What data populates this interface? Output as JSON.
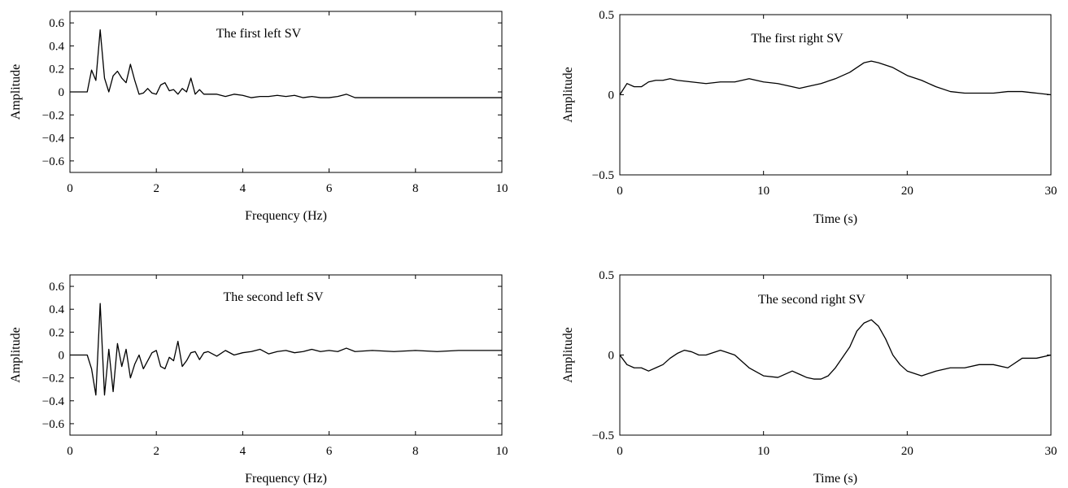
{
  "chart_data": [
    {
      "type": "line",
      "title": "The first left SV",
      "xlabel": "Frequency (Hz)",
      "ylabel": "Amplitude",
      "xlim": [
        0,
        10
      ],
      "ylim": [
        -0.7,
        0.7
      ],
      "xticks": [
        0,
        2,
        4,
        6,
        8,
        10
      ],
      "yticks": [
        0.6,
        0.4,
        0.2,
        0,
        -0.2,
        -0.4,
        -0.6
      ],
      "ytick_labels": [
        "0.6",
        "0.4",
        "0.2",
        "0",
        "−0.2",
        "−0.4",
        "−0.6"
      ],
      "grid": false,
      "x": [
        0,
        0.4,
        0.5,
        0.6,
        0.7,
        0.8,
        0.9,
        1.0,
        1.1,
        1.2,
        1.3,
        1.4,
        1.5,
        1.6,
        1.7,
        1.8,
        1.9,
        2.0,
        2.1,
        2.2,
        2.3,
        2.4,
        2.5,
        2.6,
        2.7,
        2.8,
        2.9,
        3.0,
        3.1,
        3.2,
        3.4,
        3.6,
        3.8,
        4.0,
        4.2,
        4.4,
        4.6,
        4.8,
        5.0,
        5.2,
        5.4,
        5.6,
        5.8,
        6.0,
        6.2,
        6.4,
        6.6,
        7.0,
        7.5,
        8.0,
        8.5,
        9.0,
        9.5,
        10.0
      ],
      "y": [
        0,
        0,
        0.19,
        0.1,
        0.54,
        0.12,
        0.0,
        0.14,
        0.18,
        0.12,
        0.08,
        0.24,
        0.1,
        -0.02,
        -0.01,
        0.03,
        -0.01,
        -0.02,
        0.06,
        0.08,
        0.01,
        0.02,
        -0.02,
        0.03,
        0.0,
        0.12,
        -0.02,
        0.02,
        -0.02,
        -0.02,
        -0.02,
        -0.04,
        -0.02,
        -0.03,
        -0.05,
        -0.04,
        -0.04,
        -0.03,
        -0.04,
        -0.03,
        -0.05,
        -0.04,
        -0.05,
        -0.05,
        -0.04,
        -0.02,
        -0.05,
        -0.05,
        -0.05,
        -0.05,
        -0.05,
        -0.05,
        -0.05,
        -0.05
      ]
    },
    {
      "type": "line",
      "title": "The first right SV",
      "xlabel": "Time (s)",
      "ylabel": "Amplitude",
      "xlim": [
        0,
        30
      ],
      "ylim": [
        -0.5,
        0.5
      ],
      "xticks": [
        0,
        10,
        20,
        30
      ],
      "yticks": [
        0.5,
        0,
        -0.5
      ],
      "ytick_labels": [
        "0.5",
        "0",
        "−0.5"
      ],
      "grid": false,
      "x": [
        0,
        0.5,
        1,
        1.5,
        2,
        2.5,
        3,
        3.5,
        4,
        5,
        6,
        7,
        8,
        9,
        10,
        11,
        12,
        12.5,
        13,
        14,
        15,
        16,
        17,
        17.5,
        18,
        19,
        20,
        21,
        22,
        23,
        24,
        25,
        26,
        27,
        28,
        29,
        30
      ],
      "y": [
        0.0,
        0.07,
        0.05,
        0.05,
        0.08,
        0.09,
        0.09,
        0.1,
        0.09,
        0.08,
        0.07,
        0.08,
        0.08,
        0.1,
        0.08,
        0.07,
        0.05,
        0.04,
        0.05,
        0.07,
        0.1,
        0.14,
        0.2,
        0.21,
        0.2,
        0.17,
        0.12,
        0.09,
        0.05,
        0.02,
        0.01,
        0.01,
        0.01,
        0.02,
        0.02,
        0.01,
        0.0
      ]
    },
    {
      "type": "line",
      "title": "The second left SV",
      "xlabel": "Frequency (Hz)",
      "ylabel": "Amplitude",
      "xlim": [
        0,
        10
      ],
      "ylim": [
        -0.7,
        0.7
      ],
      "xticks": [
        0,
        2,
        4,
        6,
        8,
        10
      ],
      "yticks": [
        0.6,
        0.4,
        0.2,
        0,
        -0.2,
        -0.4,
        -0.6
      ],
      "ytick_labels": [
        "0.6",
        "0.4",
        "0.2",
        "0",
        "−0.2",
        "−0.4",
        "−0.6"
      ],
      "grid": false,
      "x": [
        0,
        0.4,
        0.5,
        0.6,
        0.7,
        0.8,
        0.9,
        1.0,
        1.1,
        1.2,
        1.3,
        1.4,
        1.5,
        1.6,
        1.7,
        1.8,
        1.9,
        2.0,
        2.1,
        2.2,
        2.3,
        2.4,
        2.5,
        2.6,
        2.7,
        2.8,
        2.9,
        3.0,
        3.1,
        3.2,
        3.4,
        3.6,
        3.8,
        4.0,
        4.2,
        4.4,
        4.6,
        4.8,
        5.0,
        5.2,
        5.4,
        5.6,
        5.8,
        6.0,
        6.2,
        6.4,
        6.6,
        7.0,
        7.5,
        8.0,
        8.5,
        9.0,
        9.5,
        10.0
      ],
      "y": [
        0,
        0,
        -0.12,
        -0.35,
        0.45,
        -0.35,
        0.05,
        -0.32,
        0.1,
        -0.1,
        0.05,
        -0.2,
        -0.08,
        0.0,
        -0.12,
        -0.05,
        0.02,
        0.04,
        -0.1,
        -0.12,
        -0.02,
        -0.05,
        0.12,
        -0.1,
        -0.05,
        0.02,
        0.03,
        -0.04,
        0.02,
        0.03,
        -0.01,
        0.04,
        0.0,
        0.02,
        0.03,
        0.05,
        0.01,
        0.03,
        0.04,
        0.02,
        0.03,
        0.05,
        0.03,
        0.04,
        0.03,
        0.06,
        0.03,
        0.04,
        0.03,
        0.04,
        0.03,
        0.04,
        0.04,
        0.04
      ]
    },
    {
      "type": "line",
      "title": "The second right SV",
      "xlabel": "Time (s)",
      "ylabel": "Amplitude",
      "xlim": [
        0,
        30
      ],
      "ylim": [
        -0.5,
        0.5
      ],
      "xticks": [
        0,
        10,
        20,
        30
      ],
      "yticks": [
        0.5,
        0,
        -0.5
      ],
      "ytick_labels": [
        "0.5",
        "0",
        "−0.5"
      ],
      "grid": false,
      "x": [
        0,
        0.5,
        1,
        1.5,
        2,
        2.5,
        3,
        3.5,
        4,
        4.5,
        5,
        5.5,
        6,
        7,
        8,
        9,
        10,
        11,
        12,
        12.5,
        13,
        13.5,
        14,
        14.5,
        15,
        16,
        16.5,
        17,
        17.5,
        18,
        18.5,
        19,
        19.5,
        20,
        21,
        22,
        23,
        24,
        25,
        26,
        27,
        28,
        28.5,
        29,
        30
      ],
      "y": [
        0.0,
        -0.06,
        -0.08,
        -0.08,
        -0.1,
        -0.08,
        -0.06,
        -0.02,
        0.01,
        0.03,
        0.02,
        0.0,
        0.0,
        0.03,
        0.0,
        -0.08,
        -0.13,
        -0.14,
        -0.1,
        -0.12,
        -0.14,
        -0.15,
        -0.15,
        -0.13,
        -0.08,
        0.05,
        0.15,
        0.2,
        0.22,
        0.18,
        0.1,
        0.0,
        -0.06,
        -0.1,
        -0.13,
        -0.1,
        -0.08,
        -0.08,
        -0.06,
        -0.06,
        -0.08,
        -0.02,
        -0.02,
        -0.02,
        0.0
      ]
    }
  ]
}
